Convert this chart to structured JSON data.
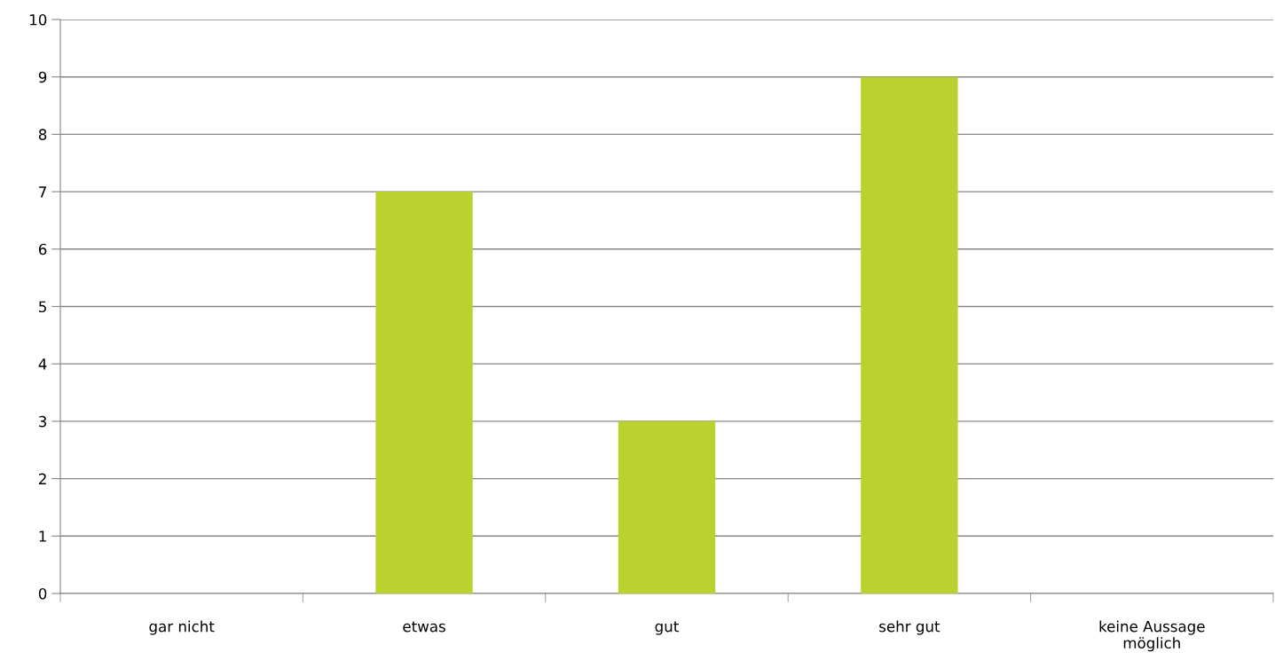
{
  "chart_data": {
    "type": "bar",
    "categories": [
      "gar nicht",
      "etwas",
      "gut",
      "sehr gut",
      "keine Aussage\nmöglich"
    ],
    "values": [
      0,
      7,
      3,
      9,
      0
    ],
    "color": "#bad12f",
    "ylim": [
      0,
      10
    ],
    "yticks": [
      0,
      1,
      2,
      3,
      4,
      5,
      6,
      7,
      8,
      9,
      10
    ],
    "grid": "y"
  }
}
